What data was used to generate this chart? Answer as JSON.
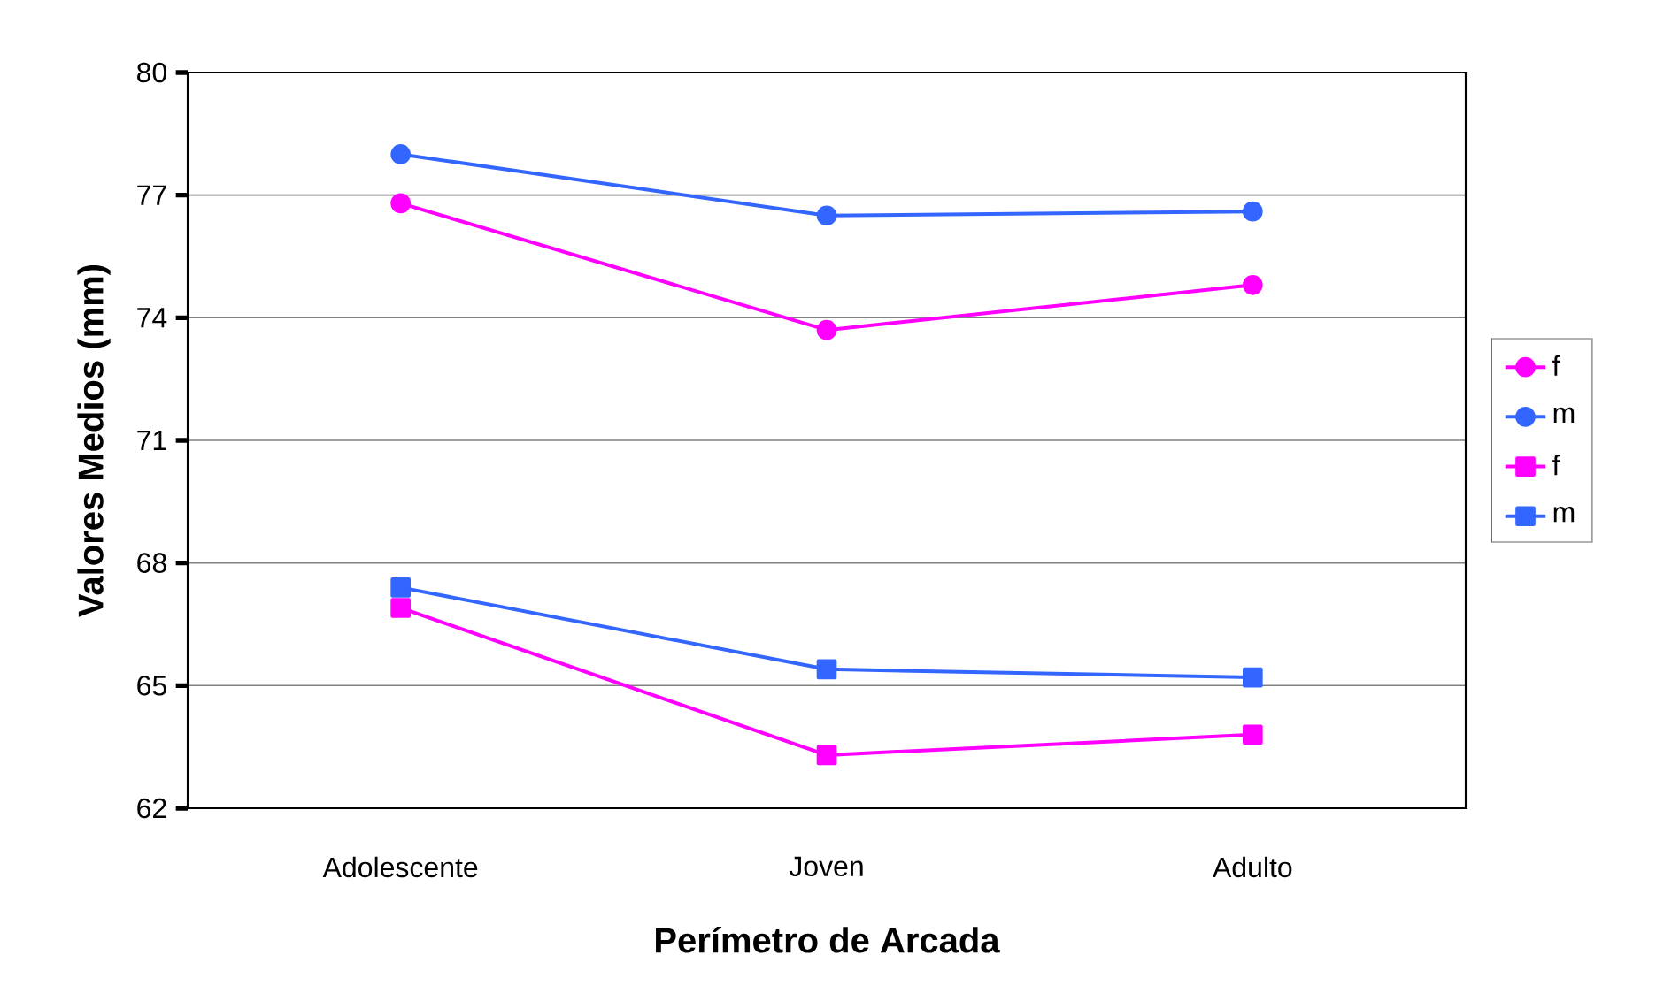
{
  "chart_data": {
    "type": "line",
    "xlabel": "Perímetro de Arcada",
    "ylabel": "Valores Medios (mm)",
    "categories": [
      "Adolescente",
      "Joven",
      "Adulto"
    ],
    "ylim": [
      62,
      80
    ],
    "yticks": [
      62,
      65,
      68,
      71,
      74,
      77,
      80
    ],
    "grid": "y",
    "legend": "right",
    "series": [
      {
        "name": "f",
        "color": "#ff00ff",
        "marker": "circle",
        "values": [
          76.8,
          73.7,
          74.8
        ]
      },
      {
        "name": "m",
        "color": "#3366ff",
        "marker": "circle",
        "values": [
          78.0,
          76.5,
          76.6
        ]
      },
      {
        "name": "f",
        "color": "#ff00ff",
        "marker": "square",
        "values": [
          66.9,
          63.3,
          63.8
        ]
      },
      {
        "name": "m",
        "color": "#3366ff",
        "marker": "square",
        "values": [
          67.4,
          65.4,
          65.2
        ]
      }
    ]
  }
}
